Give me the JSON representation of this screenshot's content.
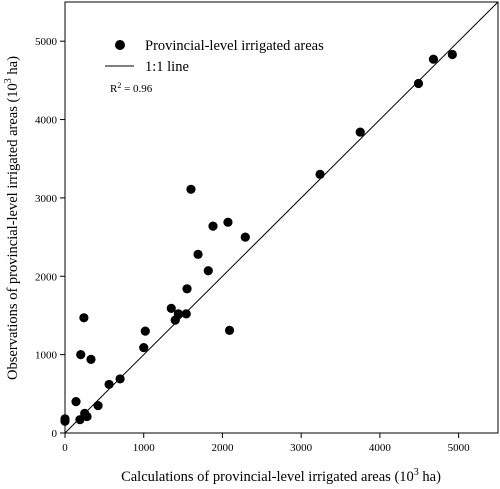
{
  "chart_data": {
    "type": "scatter",
    "xlabel_main": "Calculations of provincial-level irrigated areas (10",
    "xlabel_sup": "3",
    "xlabel_tail": " ha)",
    "ylabel_main": "Observations of provincial-level irrigated areas (10",
    "ylabel_sup": "3",
    "ylabel_tail": " ha)",
    "xlim": [
      0,
      5500
    ],
    "ylim": [
      0,
      5500
    ],
    "xticks": [
      0,
      1000,
      2000,
      3000,
      4000,
      5000
    ],
    "yticks": [
      0,
      1000,
      2000,
      3000,
      4000,
      5000
    ],
    "legend": {
      "placement": "top-left",
      "points_label": "Provincial-level irrigated areas",
      "line_label": "1:1 line"
    },
    "annotation": {
      "r2_prefix": "R",
      "r2_sup": "2",
      "r2_value": " = 0.96"
    },
    "reference_line": {
      "name": "1:1 line",
      "x": [
        0,
        5500
      ],
      "y": [
        0,
        5500
      ]
    },
    "series": [
      {
        "name": "Provincial-level irrigated areas",
        "points": [
          {
            "x": 0,
            "y": 180
          },
          {
            "x": 0,
            "y": 150
          },
          {
            "x": 140,
            "y": 400
          },
          {
            "x": 190,
            "y": 170
          },
          {
            "x": 200,
            "y": 1000
          },
          {
            "x": 240,
            "y": 1470
          },
          {
            "x": 250,
            "y": 250
          },
          {
            "x": 280,
            "y": 210
          },
          {
            "x": 330,
            "y": 940
          },
          {
            "x": 420,
            "y": 350
          },
          {
            "x": 560,
            "y": 620
          },
          {
            "x": 700,
            "y": 690
          },
          {
            "x": 1000,
            "y": 1090
          },
          {
            "x": 1020,
            "y": 1300
          },
          {
            "x": 1350,
            "y": 1590
          },
          {
            "x": 1400,
            "y": 1440
          },
          {
            "x": 1440,
            "y": 1520
          },
          {
            "x": 1540,
            "y": 1520
          },
          {
            "x": 1550,
            "y": 1840
          },
          {
            "x": 1600,
            "y": 3110
          },
          {
            "x": 1690,
            "y": 2280
          },
          {
            "x": 1820,
            "y": 2070
          },
          {
            "x": 1880,
            "y": 2640
          },
          {
            "x": 2070,
            "y": 2690
          },
          {
            "x": 2090,
            "y": 1310
          },
          {
            "x": 2290,
            "y": 2500
          },
          {
            "x": 3240,
            "y": 3300
          },
          {
            "x": 3750,
            "y": 3840
          },
          {
            "x": 4490,
            "y": 4460
          },
          {
            "x": 4680,
            "y": 4770
          },
          {
            "x": 4920,
            "y": 4830
          }
        ]
      }
    ]
  }
}
